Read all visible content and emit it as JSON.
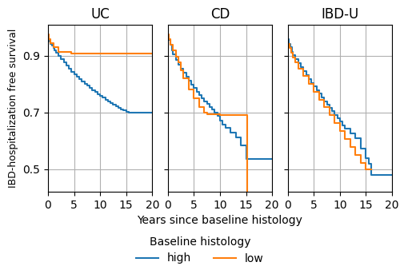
{
  "chart_data": [
    {
      "type": "step",
      "title": "UC",
      "ylabel": "IBD-hospitalization free survival",
      "xlim": [
        0,
        20
      ],
      "xticks": [
        0,
        5,
        10,
        15,
        20
      ],
      "ylim": [
        0.42,
        1.01
      ],
      "yticks": [
        0.5,
        0.7,
        0.9
      ],
      "grid": true,
      "series": [
        {
          "name": "high",
          "x": [
            0,
            0.1,
            0.3,
            0.5,
            0.7,
            1.0,
            1.3,
            1.6,
            2.0,
            2.5,
            3.0,
            3.5,
            4.0,
            4.5,
            5.0,
            5.5,
            6.0,
            6.5,
            7.0,
            7.5,
            8.0,
            8.5,
            9.0,
            9.5,
            10.0,
            10.5,
            11.0,
            11.5,
            12.0,
            12.5,
            13.0,
            13.5,
            14.0,
            14.5,
            15.0,
            15.5,
            20
          ],
          "values": [
            0.965,
            0.958,
            0.95,
            0.943,
            0.936,
            0.928,
            0.92,
            0.912,
            0.9,
            0.888,
            0.876,
            0.865,
            0.854,
            0.844,
            0.835,
            0.826,
            0.818,
            0.81,
            0.802,
            0.794,
            0.786,
            0.779,
            0.772,
            0.765,
            0.758,
            0.752,
            0.745,
            0.738,
            0.733,
            0.728,
            0.722,
            0.716,
            0.712,
            0.707,
            0.702,
            0.7,
            0.7
          ]
        },
        {
          "name": "low",
          "x": [
            0,
            0.2,
            0.5,
            1.0,
            2.0,
            4.5,
            20.0
          ],
          "values": [
            0.975,
            0.96,
            0.945,
            0.93,
            0.915,
            0.908,
            0.908
          ]
        }
      ]
    },
    {
      "type": "step",
      "title": "CD",
      "xlabel": "Years since baseline histology",
      "xlim": [
        0,
        20
      ],
      "xticks": [
        0,
        5,
        10,
        15,
        20
      ],
      "ylim": [
        0.42,
        1.01
      ],
      "yticks": [
        0.5,
        0.7,
        0.9
      ],
      "grid": true,
      "tick_labels": "x",
      "legend": "lower center",
      "legend_title": "Baseline histology",
      "series": [
        {
          "name": "high",
          "x": [
            0,
            0.2,
            0.5,
            0.8,
            1.0,
            1.5,
            2.0,
            2.5,
            3.0,
            3.5,
            4.0,
            4.5,
            5.0,
            5.5,
            6.0,
            6.5,
            7.0,
            7.5,
            8.0,
            8.5,
            9.0,
            9.5,
            10.0,
            10.5,
            11.0,
            12.0,
            13.0,
            14.0,
            15.0,
            20.0
          ],
          "values": [
            0.97,
            0.955,
            0.938,
            0.918,
            0.905,
            0.886,
            0.87,
            0.855,
            0.84,
            0.825,
            0.812,
            0.799,
            0.786,
            0.774,
            0.762,
            0.75,
            0.74,
            0.73,
            0.72,
            0.71,
            0.7,
            0.688,
            0.67,
            0.658,
            0.645,
            0.63,
            0.612,
            0.585,
            0.535,
            0.535
          ]
        },
        {
          "name": "low",
          "x": [
            0,
            0.2,
            0.5,
            1.0,
            1.5,
            2.0,
            2.5,
            3.0,
            4.0,
            5.0,
            6.0,
            7.0,
            7.5,
            10.0,
            10.5,
            15.0,
            15.2
          ],
          "values": [
            0.975,
            0.958,
            0.94,
            0.918,
            0.898,
            0.878,
            0.848,
            0.822,
            0.782,
            0.75,
            0.72,
            0.7,
            0.695,
            0.692,
            0.692,
            0.692,
            0.42
          ]
        }
      ]
    },
    {
      "type": "step",
      "title": "IBD-U",
      "xlim": [
        0,
        20
      ],
      "xticks": [
        0,
        5,
        10,
        15,
        20
      ],
      "ylim": [
        0.42,
        1.01
      ],
      "yticks": [
        0.5,
        0.7,
        0.9
      ],
      "grid": true,
      "tick_labels": "x",
      "series": [
        {
          "name": "high",
          "x": [
            0,
            0.2,
            0.5,
            0.8,
            1.0,
            1.5,
            2.0,
            2.5,
            3.0,
            3.5,
            4.0,
            4.5,
            5.0,
            5.5,
            6.0,
            6.5,
            7.0,
            7.5,
            8.0,
            8.5,
            9.0,
            9.5,
            10.0,
            10.5,
            11.0,
            12.0,
            13.0,
            14.0,
            15.0,
            15.5,
            16.0,
            20.0
          ],
          "values": [
            0.958,
            0.943,
            0.93,
            0.915,
            0.902,
            0.888,
            0.874,
            0.86,
            0.846,
            0.832,
            0.818,
            0.805,
            0.792,
            0.779,
            0.766,
            0.753,
            0.74,
            0.728,
            0.716,
            0.704,
            0.692,
            0.68,
            0.668,
            0.655,
            0.642,
            0.625,
            0.608,
            0.572,
            0.54,
            0.52,
            0.48,
            0.48
          ]
        },
        {
          "name": "low",
          "x": [
            0,
            0.3,
            0.6,
            1.0,
            1.5,
            2.0,
            3.0,
            4.0,
            5.0,
            6.0,
            7.0,
            8.0,
            9.0,
            10.0,
            11.0,
            12.0,
            13.0,
            14.0,
            15.0,
            16.0
          ],
          "values": [
            0.942,
            0.928,
            0.912,
            0.894,
            0.876,
            0.855,
            0.828,
            0.8,
            0.772,
            0.745,
            0.718,
            0.69,
            0.662,
            0.634,
            0.606,
            0.578,
            0.55,
            0.522,
            0.5,
            0.5
          ]
        }
      ]
    }
  ]
}
